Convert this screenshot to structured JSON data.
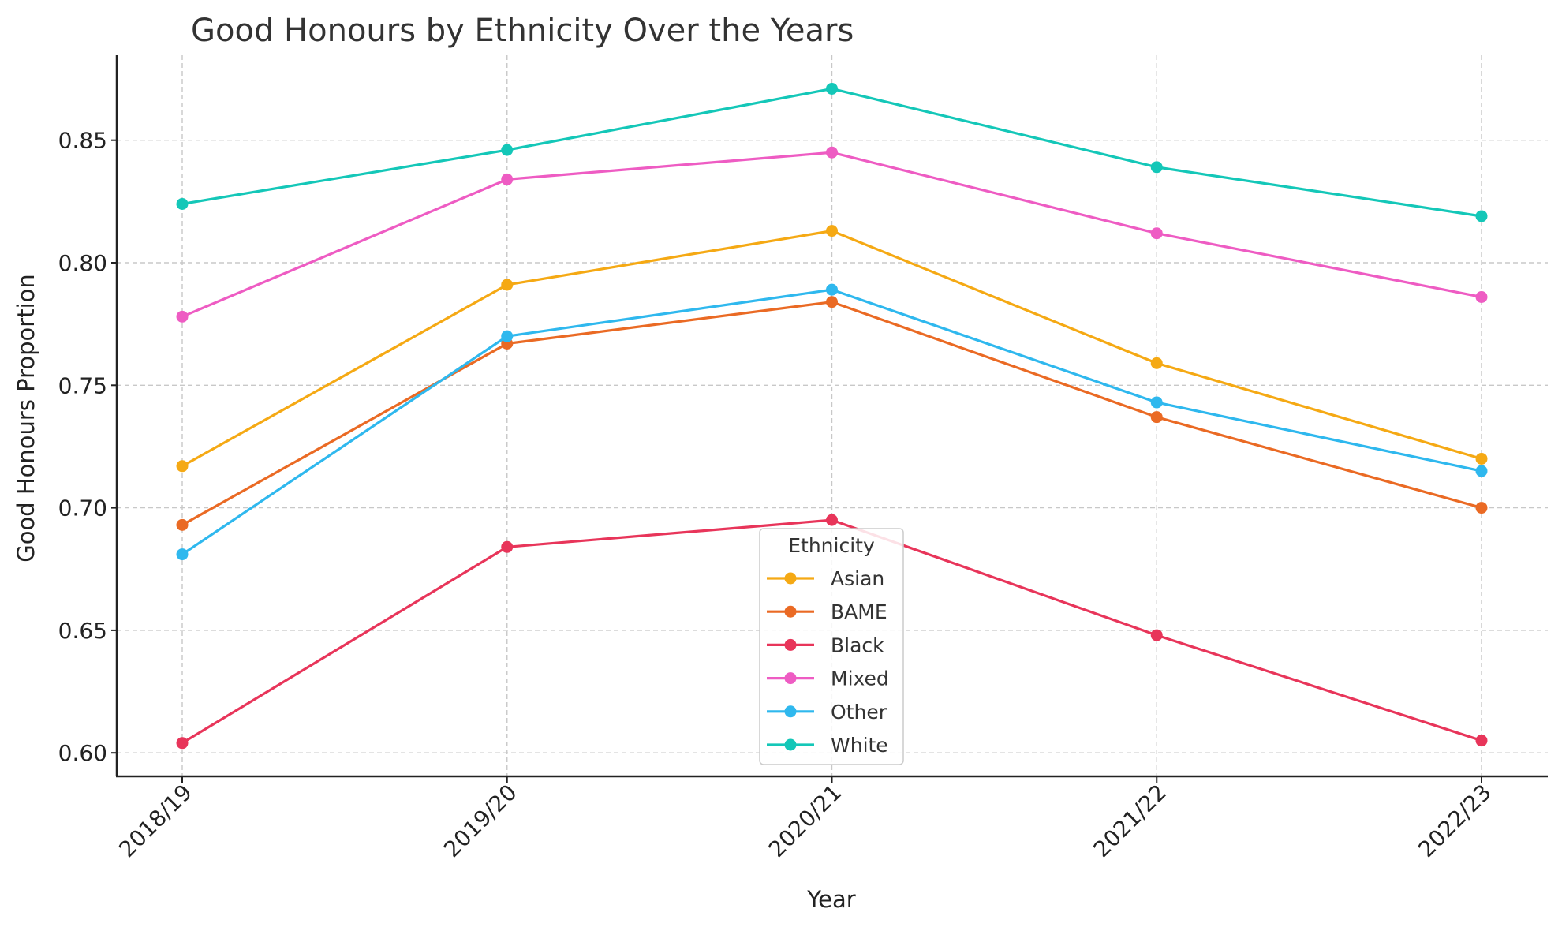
{
  "chart_data": {
    "type": "line",
    "title": "Good Honours by Ethnicity Over the Years",
    "xlabel": "Year",
    "ylabel": "Good Honours Proportion",
    "categories": [
      "2018/19",
      "2019/20",
      "2020/21",
      "2021/22",
      "2022/23"
    ],
    "ylim": [
      0.59,
      0.885
    ],
    "yticks": [
      0.6,
      0.65,
      0.7,
      0.75,
      0.8,
      0.85
    ],
    "ytick_labels": [
      "0.60",
      "0.65",
      "0.70",
      "0.75",
      "0.80",
      "0.85"
    ],
    "grid": true,
    "legend": {
      "title": "Ethnicity",
      "placement": "bottom-center"
    },
    "series": [
      {
        "name": "Asian",
        "color": "#f5a914",
        "values": [
          0.717,
          0.791,
          0.813,
          0.759,
          0.72
        ]
      },
      {
        "name": "BAME",
        "color": "#ea6a24",
        "values": [
          0.693,
          0.767,
          0.784,
          0.737,
          0.7
        ]
      },
      {
        "name": "Black",
        "color": "#e8355a",
        "values": [
          0.604,
          0.684,
          0.695,
          0.648,
          0.605
        ]
      },
      {
        "name": "Mixed",
        "color": "#ee5cc3",
        "values": [
          0.778,
          0.834,
          0.845,
          0.812,
          0.786
        ]
      },
      {
        "name": "Other",
        "color": "#2fb8ee",
        "values": [
          0.681,
          0.77,
          0.789,
          0.743,
          0.715
        ]
      },
      {
        "name": "White",
        "color": "#14c7b8",
        "values": [
          0.824,
          0.846,
          0.871,
          0.839,
          0.819
        ]
      }
    ]
  }
}
